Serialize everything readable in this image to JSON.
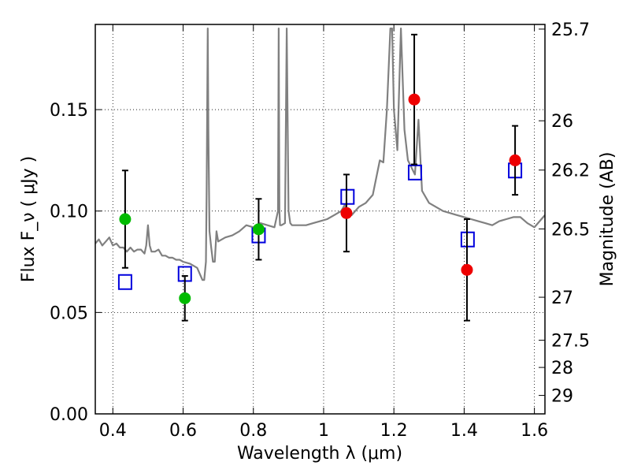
{
  "chart_data": {
    "type": "scatter",
    "xlabel": "Wavelength  λ (μm)",
    "ylabel": "Flux  F_ν  ( μJy )",
    "y2label": "Magnitude (AB)",
    "xlim": [
      0.35,
      1.63
    ],
    "ylim": [
      0.0,
      0.192
    ],
    "grid": true,
    "x_ticks": [
      0.4,
      0.6,
      0.8,
      1.0,
      1.2,
      1.4,
      1.6
    ],
    "x_tick_labels": [
      "0.4",
      "0.6",
      "0.8",
      "1",
      "1.2",
      "1.4",
      "1.6"
    ],
    "y_ticks": [
      0.0,
      0.05,
      0.1,
      0.15
    ],
    "y_tick_labels": [
      "0.00",
      "0.05",
      "0.10",
      "0.15"
    ],
    "mag_ticks": [
      {
        "label": "25.7",
        "flux": 0.1897
      },
      {
        "label": "26",
        "flux": 0.1445
      },
      {
        "label": "26.2",
        "flux": 0.1202
      },
      {
        "label": "26.5",
        "flux": 0.0912
      },
      {
        "label": "27",
        "flux": 0.0575
      },
      {
        "label": "27.5",
        "flux": 0.0363
      },
      {
        "label": "28",
        "flux": 0.0229
      },
      {
        "label": "29",
        "flux": 0.0091
      }
    ],
    "series": [
      {
        "style": "model-spectrum",
        "color": "#808080",
        "x": [
          0.35,
          0.36,
          0.37,
          0.38,
          0.39,
          0.4,
          0.41,
          0.42,
          0.43,
          0.44,
          0.45,
          0.46,
          0.47,
          0.48,
          0.49,
          0.495,
          0.5,
          0.505,
          0.51,
          0.52,
          0.53,
          0.54,
          0.55,
          0.56,
          0.57,
          0.58,
          0.59,
          0.6,
          0.62,
          0.64,
          0.655,
          0.66,
          0.665,
          0.667,
          0.67,
          0.672,
          0.675,
          0.68,
          0.685,
          0.69,
          0.695,
          0.7,
          0.72,
          0.74,
          0.76,
          0.78,
          0.8,
          0.82,
          0.84,
          0.86,
          0.87,
          0.872,
          0.874,
          0.876,
          0.88,
          0.89,
          0.895,
          0.9,
          0.905,
          0.91,
          0.93,
          0.95,
          0.97,
          0.99,
          1.01,
          1.03,
          1.05,
          1.06,
          1.07,
          1.08,
          1.09,
          1.1,
          1.12,
          1.14,
          1.16,
          1.17,
          1.18,
          1.19,
          1.195,
          1.2,
          1.21,
          1.22,
          1.23,
          1.24,
          1.26,
          1.27,
          1.28,
          1.3,
          1.32,
          1.34,
          1.36,
          1.38,
          1.4,
          1.42,
          1.44,
          1.46,
          1.48,
          1.5,
          1.52,
          1.54,
          1.56,
          1.58,
          1.6,
          1.61,
          1.62,
          1.63
        ],
        "y": [
          0.084,
          0.086,
          0.083,
          0.085,
          0.087,
          0.083,
          0.084,
          0.082,
          0.082,
          0.08,
          0.082,
          0.08,
          0.081,
          0.081,
          0.079,
          0.083,
          0.093,
          0.083,
          0.08,
          0.08,
          0.081,
          0.078,
          0.078,
          0.077,
          0.077,
          0.076,
          0.076,
          0.075,
          0.074,
          0.072,
          0.066,
          0.066,
          0.075,
          0.11,
          0.19,
          0.14,
          0.09,
          0.082,
          0.075,
          0.075,
          0.09,
          0.085,
          0.087,
          0.088,
          0.09,
          0.093,
          0.092,
          0.094,
          0.093,
          0.092,
          0.1,
          0.19,
          0.1,
          0.093,
          0.093,
          0.094,
          0.19,
          0.1,
          0.094,
          0.093,
          0.093,
          0.093,
          0.094,
          0.095,
          0.096,
          0.098,
          0.1,
          0.103,
          0.099,
          0.098,
          0.1,
          0.102,
          0.104,
          0.108,
          0.125,
          0.124,
          0.15,
          0.19,
          0.19,
          0.15,
          0.13,
          0.19,
          0.14,
          0.125,
          0.118,
          0.145,
          0.11,
          0.104,
          0.102,
          0.1,
          0.099,
          0.098,
          0.097,
          0.096,
          0.095,
          0.094,
          0.093,
          0.095,
          0.096,
          0.097,
          0.097,
          0.094,
          0.092,
          0.094,
          0.096,
          0.098
        ]
      },
      {
        "style": "open-square",
        "color": "#0000dd",
        "x": [
          0.435,
          0.605,
          0.815,
          1.068,
          1.26,
          1.41,
          1.545
        ],
        "y": [
          0.065,
          0.069,
          0.088,
          0.107,
          0.119,
          0.086,
          0.12
        ]
      },
      {
        "style": "filled-circle",
        "color": "#00bb00",
        "x": [
          0.435,
          0.605,
          0.815
        ],
        "y": [
          0.096,
          0.057,
          0.091
        ],
        "yerr": [
          0.024,
          0.011,
          0.015
        ]
      },
      {
        "style": "filled-circle",
        "color": "#ee0000",
        "x": [
          1.065,
          1.258,
          1.408,
          1.545
        ],
        "y": [
          0.099,
          0.155,
          0.071,
          0.125
        ],
        "yerr": [
          0.019,
          0.032,
          0.025,
          0.017
        ]
      }
    ]
  }
}
